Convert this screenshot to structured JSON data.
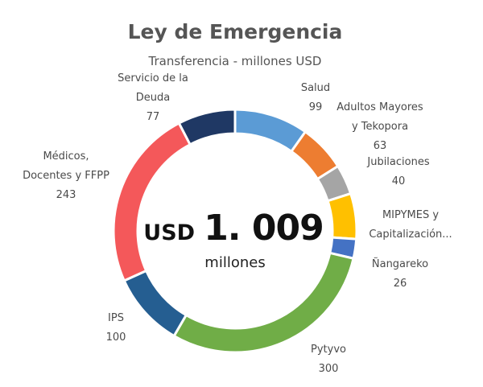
{
  "chart_data": {
    "type": "pie",
    "title": "Ley de Emergencia",
    "subtitle": "Transferencia - millones USD",
    "center": {
      "unit": "USD",
      "value": "1. 009",
      "caption": "millones"
    },
    "slices": [
      {
        "label_lines": [
          "Salud"
        ],
        "value": 99,
        "value_text": "99",
        "color": "#5b9bd5"
      },
      {
        "label_lines": [
          "Adultos Mayores",
          "y Tekopora"
        ],
        "value": 63,
        "value_text": "63",
        "color": "#ed7d31"
      },
      {
        "label_lines": [
          "Jubilaciones"
        ],
        "value": 40,
        "value_text": "40",
        "color": "#a5a5a5"
      },
      {
        "label_lines": [
          "MIPYMES y",
          "Capitalización..."
        ],
        "value": 61,
        "value_text": "",
        "color": "#ffc000"
      },
      {
        "label_lines": [
          "Ñangareko"
        ],
        "value": 26,
        "value_text": "26",
        "color": "#4472c4"
      },
      {
        "label_lines": [
          "Pytyvo"
        ],
        "value": 300,
        "value_text": "300",
        "color": "#70ad47"
      },
      {
        "label_lines": [
          "IPS"
        ],
        "value": 100,
        "value_text": "100",
        "color": "#255e91"
      },
      {
        "label_lines": [
          "Médicos,",
          "Docentes y FFPP"
        ],
        "value": 243,
        "value_text": "243",
        "color": "#f4585a"
      },
      {
        "label_lines": [
          "Servicio de la",
          "Deuda"
        ],
        "value": 77,
        "value_text": "77",
        "color": "#1f3864"
      }
    ]
  }
}
